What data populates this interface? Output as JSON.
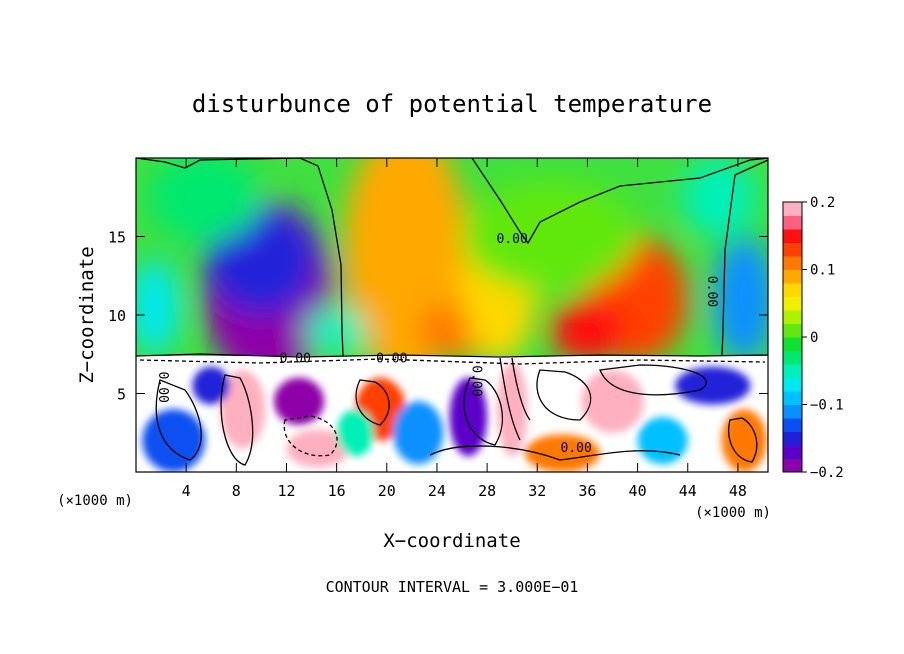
{
  "chart_data": {
    "type": "heatmap",
    "title": "disturbunce of potential temperature",
    "xlabel": "X−coordinate",
    "ylabel": "Z−coordinate",
    "x_unit_left": "(×1000 m)",
    "x_unit_right": "(×1000 m)",
    "xlim": [
      0,
      50.4
    ],
    "ylim": [
      0,
      20
    ],
    "x_ticks": [
      4,
      8,
      12,
      16,
      20,
      24,
      28,
      32,
      36,
      40,
      44,
      48
    ],
    "y_ticks": [
      5,
      10,
      15
    ],
    "footer": "CONTOUR INTERVAL = 3.000E−01",
    "colorbar": {
      "range": [
        -0.2,
        0.2
      ],
      "tick_values": [
        0.2,
        0.1,
        0,
        -0.1,
        -0.2
      ],
      "tick_labels": [
        "0.2",
        "0.1",
        "0",
        "−0.1",
        "−0.2"
      ],
      "colors": [
        "#8e00a8",
        "#5a00c8",
        "#2020d8",
        "#0a50f0",
        "#0890ff",
        "#00c0ff",
        "#00e8f0",
        "#00f0b8",
        "#00e870",
        "#10e030",
        "#60e810",
        "#b0f000",
        "#f0f000",
        "#ffd800",
        "#ffa800",
        "#ff7800",
        "#ff4000",
        "#ff1010",
        "#ff6080",
        "#ffb0c0"
      ]
    },
    "contour_labels": [
      {
        "text": "0.00",
        "x": 30,
        "y": 14.8,
        "vertical": false
      },
      {
        "text": "0.00",
        "x": 45.9,
        "y": 11.5,
        "vertical": true
      },
      {
        "text": "0.00",
        "x": 12.7,
        "y": 7.2,
        "vertical": false
      },
      {
        "text": "0.00",
        "x": 20.4,
        "y": 7.2,
        "vertical": false
      },
      {
        "text": "0.00",
        "x": 35.1,
        "y": 1.5,
        "vertical": false
      },
      {
        "text": "0.00",
        "x": 2.1,
        "y": 5.4,
        "vertical": true
      },
      {
        "text": "0.00",
        "x": 27.1,
        "y": 5.8,
        "vertical": true
      }
    ],
    "blobs": [
      {
        "x": 10.5,
        "y": 11.5,
        "rx": 5.2,
        "ry": 5.8,
        "v": -0.2
      },
      {
        "x": 9.5,
        "y": 10.5,
        "rx": 4.0,
        "ry": 3.0,
        "v": -0.22
      },
      {
        "x": 10.0,
        "y": 13.5,
        "rx": 4.5,
        "ry": 3.5,
        "v": -0.15
      },
      {
        "x": 5.5,
        "y": 17.5,
        "rx": 4.5,
        "ry": 2.8,
        "v": -0.03
      },
      {
        "x": 21.5,
        "y": 14.0,
        "rx": 5.0,
        "ry": 8.0,
        "v": 0.08
      },
      {
        "x": 25.5,
        "y": 9.0,
        "rx": 3.0,
        "ry": 1.8,
        "v": 0.12
      },
      {
        "x": 29.0,
        "y": 12.0,
        "rx": 3.0,
        "ry": 5.0,
        "v": 0.06
      },
      {
        "x": 40.0,
        "y": 11.0,
        "rx": 4.0,
        "ry": 4.0,
        "v": 0.13
      },
      {
        "x": 36.0,
        "y": 9.0,
        "rx": 3.0,
        "ry": 2.0,
        "v": 0.14
      },
      {
        "x": 33.0,
        "y": 15.0,
        "rx": 7.0,
        "ry": 3.5,
        "v": 0.02
      },
      {
        "x": 48.5,
        "y": 11.0,
        "rx": 2.5,
        "ry": 4.0,
        "v": -0.12
      },
      {
        "x": 46.5,
        "y": 17.5,
        "rx": 3.0,
        "ry": 2.5,
        "v": -0.06
      },
      {
        "x": 1.5,
        "y": 10.5,
        "rx": 2.0,
        "ry": 3.0,
        "v": -0.08
      },
      {
        "x": 16.0,
        "y": 9.0,
        "rx": 2.5,
        "ry": 1.5,
        "v": -0.06
      }
    ],
    "lower_blobs": [
      {
        "x": 3,
        "y": 2,
        "rx": 2.5,
        "ry": 2.0,
        "v": -0.13
      },
      {
        "x": 8.5,
        "y": 4,
        "rx": 1.8,
        "ry": 2.5,
        "v": 0.2
      },
      {
        "x": 13,
        "y": 4.5,
        "rx": 2.0,
        "ry": 1.5,
        "v": -0.2
      },
      {
        "x": 14.5,
        "y": 1.5,
        "rx": 2.5,
        "ry": 1.2,
        "v": 0.2
      },
      {
        "x": 19.5,
        "y": 4.0,
        "rx": 2.0,
        "ry": 2.0,
        "v": 0.13
      },
      {
        "x": 22.5,
        "y": 2.5,
        "rx": 2.0,
        "ry": 2.0,
        "v": -0.12
      },
      {
        "x": 26.5,
        "y": 3.5,
        "rx": 1.5,
        "ry": 2.5,
        "v": -0.17
      },
      {
        "x": 30,
        "y": 4.0,
        "rx": 1.2,
        "ry": 3.0,
        "v": 0.2
      },
      {
        "x": 34,
        "y": 1.2,
        "rx": 3.0,
        "ry": 1.2,
        "v": 0.12
      },
      {
        "x": 38,
        "y": 4.5,
        "rx": 2.5,
        "ry": 2.0,
        "v": 0.2
      },
      {
        "x": 42,
        "y": 2.0,
        "rx": 2.0,
        "ry": 1.5,
        "v": -0.1
      },
      {
        "x": 46,
        "y": 5.5,
        "rx": 3.0,
        "ry": 1.2,
        "v": -0.15
      },
      {
        "x": 48.5,
        "y": 2.0,
        "rx": 1.8,
        "ry": 2.0,
        "v": 0.12
      },
      {
        "x": 6,
        "y": 5.5,
        "rx": 1.5,
        "ry": 1.2,
        "v": -0.15
      },
      {
        "x": 17.5,
        "y": 2.5,
        "rx": 1.5,
        "ry": 1.5,
        "v": -0.05
      }
    ]
  }
}
